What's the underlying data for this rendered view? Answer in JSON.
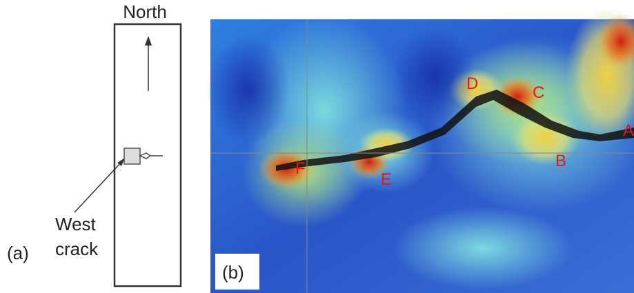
{
  "panel_a": {
    "north_label": "North",
    "crack_label": [
      "West",
      "crack"
    ],
    "panel_label": "(a)"
  },
  "panel_b": {
    "panel_label": "(b)",
    "point_labels": [
      "A",
      "B",
      "C",
      "D",
      "E",
      "F"
    ]
  }
}
